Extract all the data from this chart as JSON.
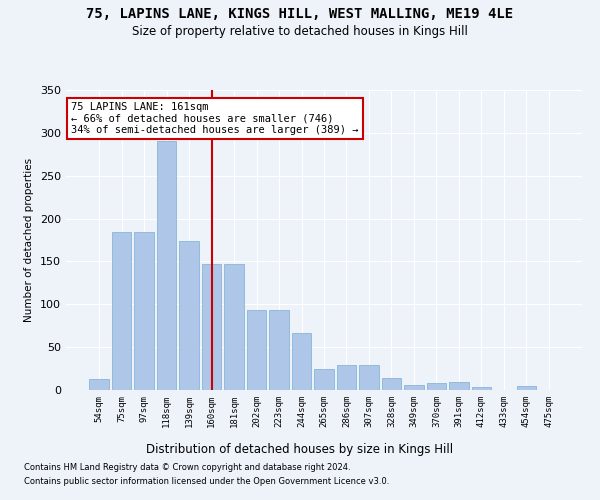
{
  "title": "75, LAPINS LANE, KINGS HILL, WEST MALLING, ME19 4LE",
  "subtitle": "Size of property relative to detached houses in Kings Hill",
  "xlabel": "Distribution of detached houses by size in Kings Hill",
  "ylabel": "Number of detached properties",
  "categories": [
    "54sqm",
    "75sqm",
    "97sqm",
    "118sqm",
    "139sqm",
    "160sqm",
    "181sqm",
    "202sqm",
    "223sqm",
    "244sqm",
    "265sqm",
    "286sqm",
    "307sqm",
    "328sqm",
    "349sqm",
    "370sqm",
    "391sqm",
    "412sqm",
    "433sqm",
    "454sqm",
    "475sqm"
  ],
  "values": [
    13,
    184,
    184,
    290,
    174,
    147,
    147,
    93,
    93,
    67,
    25,
    29,
    29,
    14,
    6,
    8,
    9,
    3,
    0,
    5,
    0
  ],
  "bar_color": "#aec6e8",
  "bar_edge_color": "#7aafd4",
  "vline_x": 5,
  "vline_color": "#cc0000",
  "annotation_text": "75 LAPINS LANE: 161sqm\n← 66% of detached houses are smaller (746)\n34% of semi-detached houses are larger (389) →",
  "annotation_box_color": "#ffffff",
  "annotation_box_edge_color": "#cc0000",
  "background_color": "#eef2f9",
  "grid_color": "#ffffff",
  "footer_line1": "Contains HM Land Registry data © Crown copyright and database right 2024.",
  "footer_line2": "Contains public sector information licensed under the Open Government Licence v3.0.",
  "ylim": [
    0,
    350
  ],
  "yticks": [
    0,
    50,
    100,
    150,
    200,
    250,
    300,
    350
  ]
}
